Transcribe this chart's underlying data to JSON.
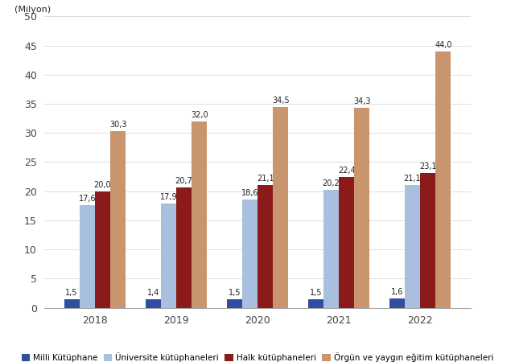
{
  "years": [
    "2018",
    "2019",
    "2020",
    "2021",
    "2022"
  ],
  "series": [
    {
      "label": "Milli Kütüphane",
      "color": "#2e4e9e",
      "values": [
        1.5,
        1.4,
        1.5,
        1.5,
        1.6
      ]
    },
    {
      "label": "Üniversite kütüphaneleri",
      "color": "#a8bfdf",
      "values": [
        17.6,
        17.9,
        18.6,
        20.2,
        21.1
      ]
    },
    {
      "label": "Halk kütüphaneleri",
      "color": "#8b1a1a",
      "values": [
        20.0,
        20.7,
        21.1,
        22.4,
        23.1
      ]
    },
    {
      "label": "Örgün ve yaygın eğitim kütüphaneleri",
      "color": "#c9956e",
      "values": [
        30.3,
        32.0,
        34.5,
        34.3,
        44.0
      ]
    }
  ],
  "milyon_label": "(Milyon)",
  "ylim": [
    0,
    50
  ],
  "yticks": [
    0,
    5,
    10,
    15,
    20,
    25,
    30,
    35,
    40,
    45,
    50
  ],
  "background_color": "#ffffff",
  "bar_width": 0.19,
  "label_fontsize": 7.0,
  "legend_fontsize": 7.5,
  "axis_fontsize": 9,
  "grid_color": "#dddddd"
}
